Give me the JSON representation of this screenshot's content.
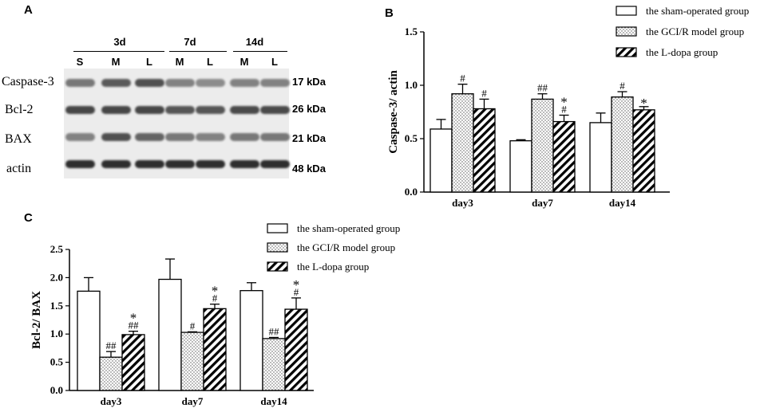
{
  "panelA": {
    "letter": "A",
    "timepoints": [
      "3d",
      "7d",
      "14d"
    ],
    "lanes": [
      "S",
      "M",
      "L",
      "M",
      "L",
      "M",
      "L"
    ],
    "proteins": [
      "Caspase-3",
      "Bcl-2",
      "BAX",
      "actin"
    ],
    "kda": [
      "17 kDa",
      "26 kDa",
      "21 kDa",
      "48 kDa"
    ]
  },
  "panelB": {
    "letter": "B"
  },
  "panelC": {
    "letter": "C"
  },
  "chart_data": [
    {
      "type": "bar",
      "panel": "B",
      "categories": [
        "day3",
        "day7",
        "day14"
      ],
      "ylabel": "Caspase-3/ actin",
      "xlabel": "",
      "ylim": [
        0,
        1.5
      ],
      "yticks": [
        "0.0",
        "0.5",
        "1.0",
        "1.5"
      ],
      "legend_position": "top-right",
      "series": [
        {
          "name": "the sham-operated group",
          "pattern": "white",
          "values": [
            0.59,
            0.48,
            0.65
          ],
          "errors": [
            0.09,
            0.01,
            0.09
          ]
        },
        {
          "name": "the GCI/R model group",
          "pattern": "dots",
          "values": [
            0.92,
            0.87,
            0.89
          ],
          "errors": [
            0.09,
            0.05,
            0.05
          ]
        },
        {
          "name": "the L-dopa group",
          "pattern": "hatch",
          "values": [
            0.78,
            0.66,
            0.77
          ],
          "errors": [
            0.09,
            0.06,
            0.03
          ]
        }
      ],
      "annotations": [
        [
          "",
          "",
          ""
        ],
        [
          "#",
          "##",
          "#"
        ],
        [
          "#",
          "*\n#",
          "*"
        ]
      ]
    },
    {
      "type": "bar",
      "panel": "C",
      "categories": [
        "day3",
        "day7",
        "day14"
      ],
      "ylabel": "Bcl-2/ BAX",
      "xlabel": "",
      "ylim": [
        0,
        2.5
      ],
      "yticks": [
        "0.0",
        "0.5",
        "1.0",
        "1.5",
        "2.0",
        "2.5"
      ],
      "legend_position": "top-right",
      "series": [
        {
          "name": "the sham-operated group",
          "pattern": "white",
          "values": [
            1.76,
            1.97,
            1.77
          ],
          "errors": [
            0.24,
            0.36,
            0.14
          ]
        },
        {
          "name": "the GCI/R model group",
          "pattern": "dots",
          "values": [
            0.59,
            1.03,
            0.92
          ],
          "errors": [
            0.1,
            0.01,
            0.02
          ]
        },
        {
          "name": "the L-dopa group",
          "pattern": "hatch",
          "values": [
            0.99,
            1.45,
            1.44
          ],
          "errors": [
            0.06,
            0.08,
            0.2
          ]
        }
      ],
      "annotations": [
        [
          "",
          "",
          ""
        ],
        [
          "##",
          "#",
          "##"
        ],
        [
          "*\n##",
          "*\n#",
          "*\n#"
        ]
      ]
    }
  ]
}
